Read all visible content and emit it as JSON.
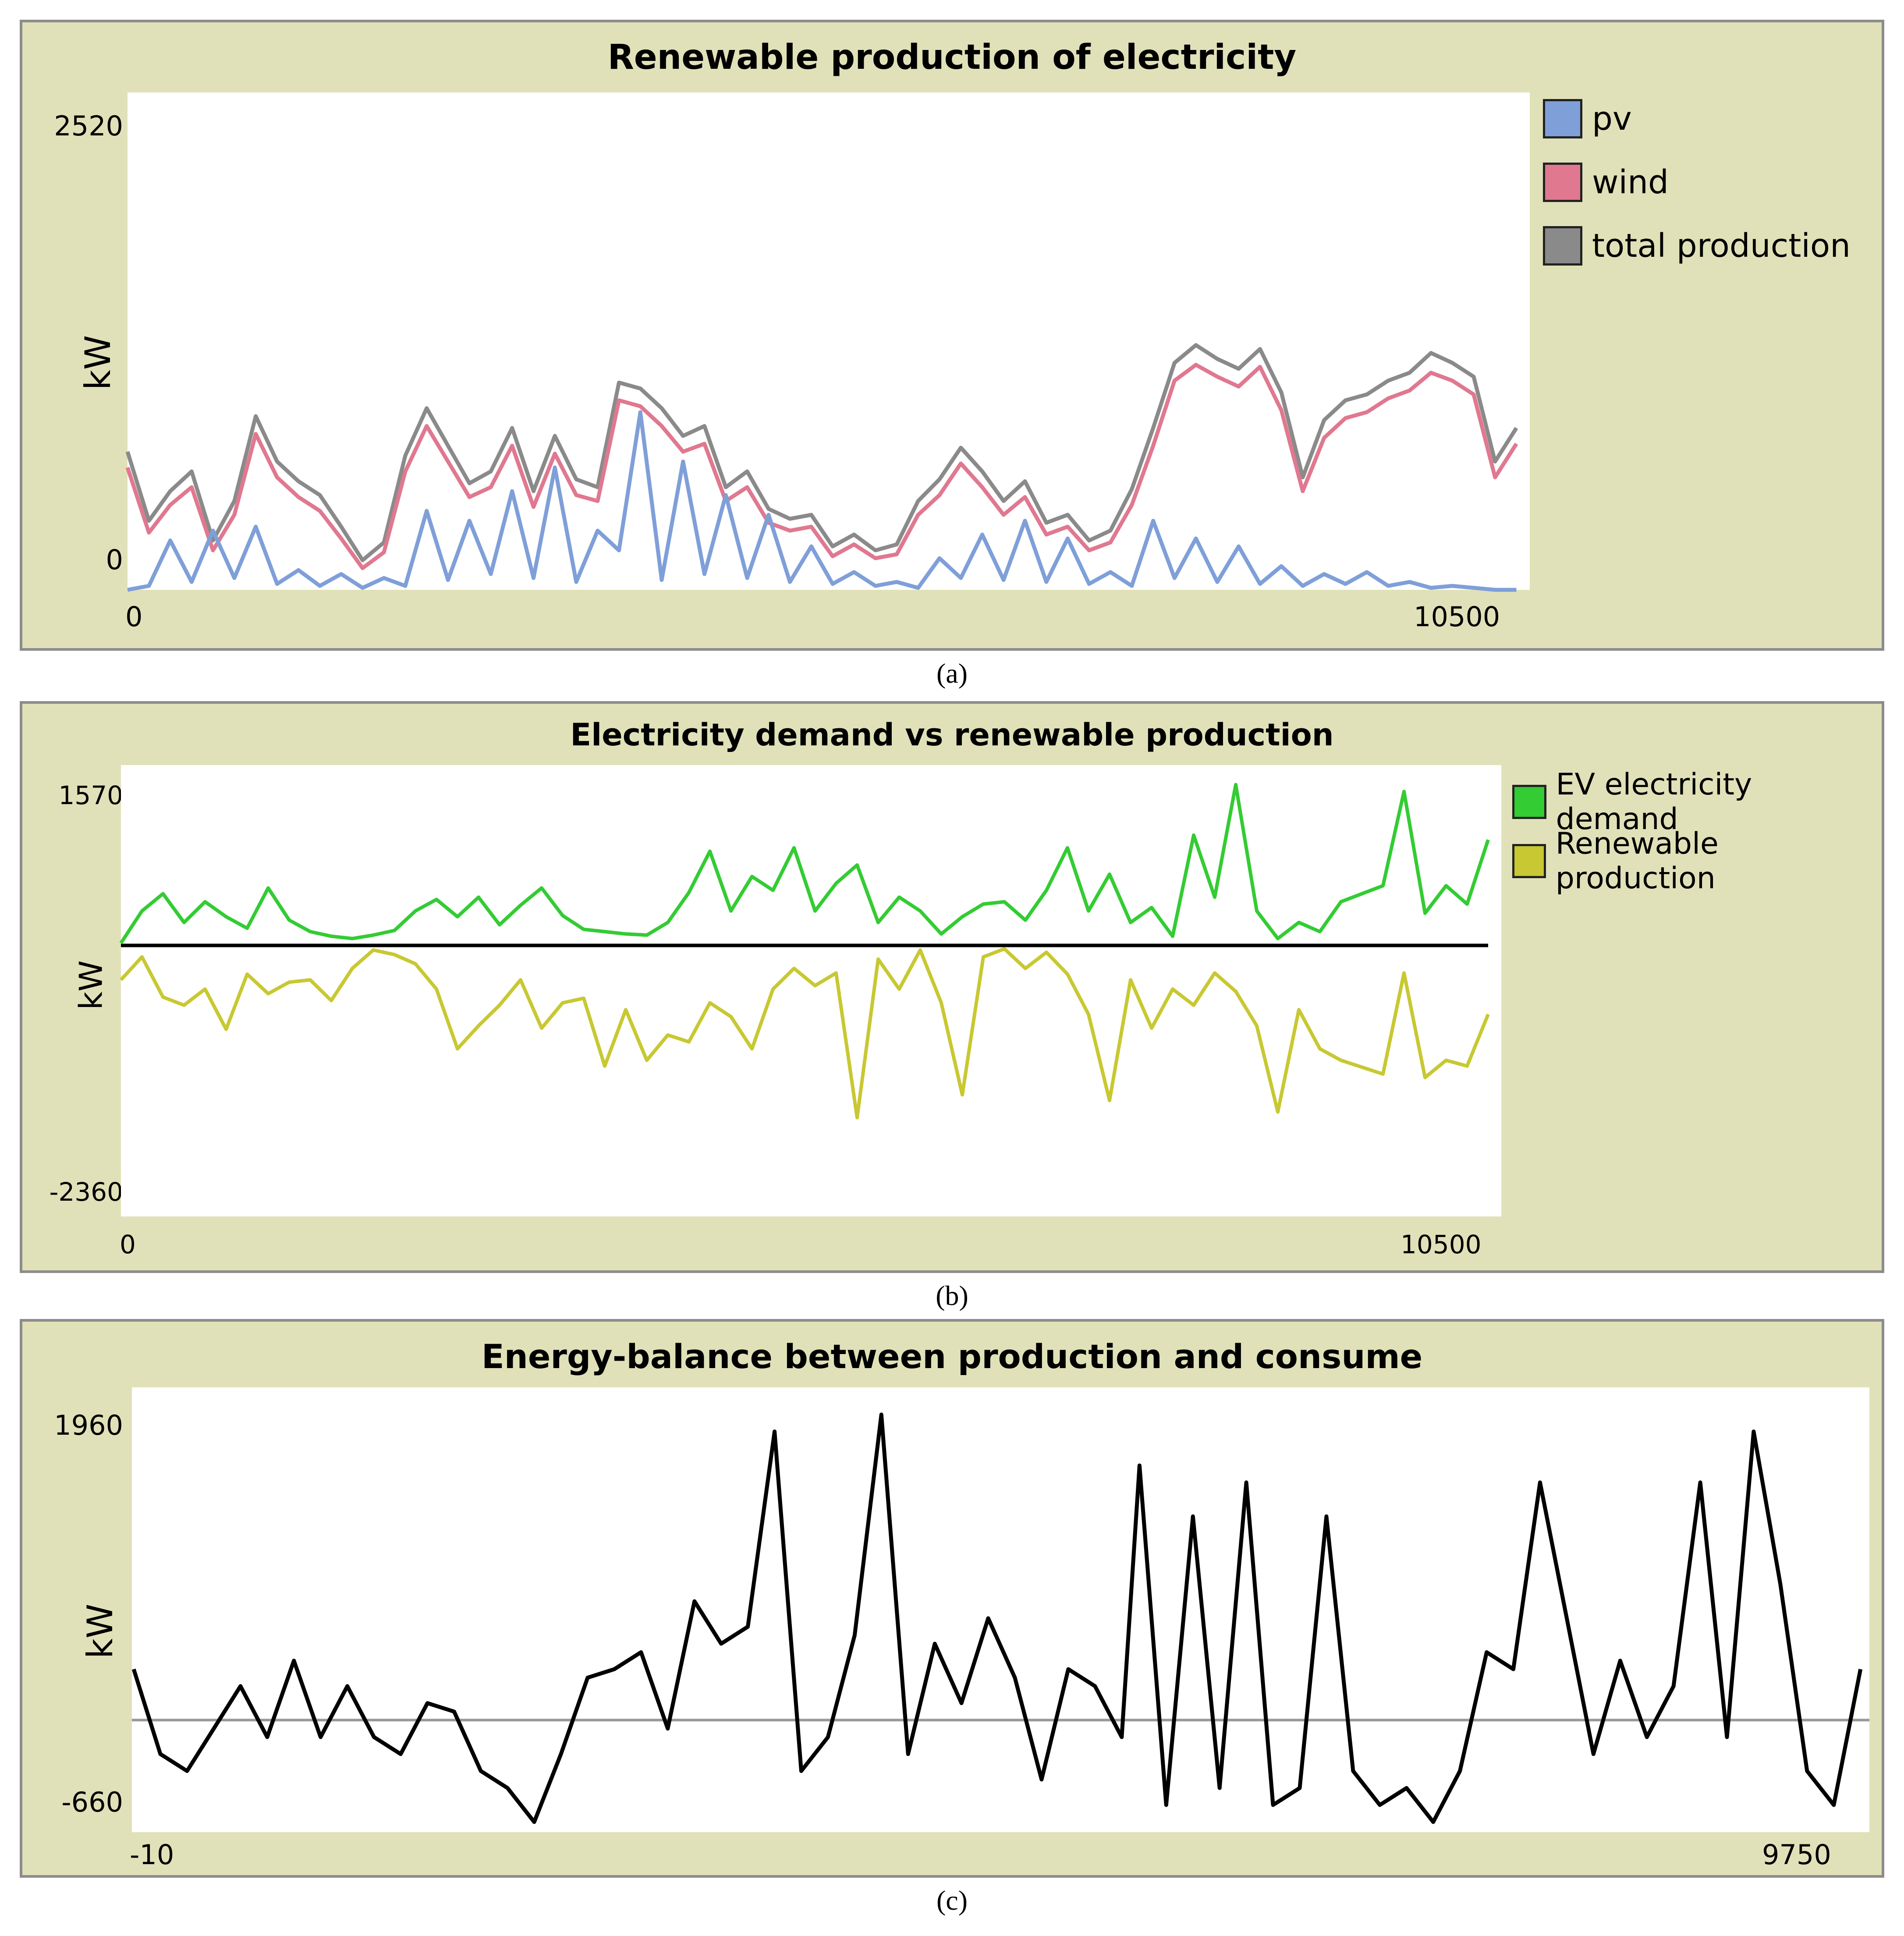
{
  "colors": {
    "panel_bg": "#e1e1b9",
    "pv": "#7f9fd8",
    "wind": "#e07890",
    "total": "#8a8a8a",
    "ev": "#33cc33",
    "renew": "#c8c832",
    "balance": "#000000",
    "zero_line": "#999999"
  },
  "chart_data": [
    {
      "type": "line",
      "title": "Renewable production of electricity",
      "ylabel": "kW",
      "xlabel": "",
      "xlim": [
        0,
        10500
      ],
      "ylim": [
        0,
        2520
      ],
      "x_tick_labels": [
        "0",
        "10500"
      ],
      "y_tick_labels": [
        "2520",
        "0"
      ],
      "legend": [
        {
          "name": "pv",
          "color": "#7f9fd8"
        },
        {
          "name": "wind",
          "color": "#e07890"
        },
        {
          "name": "total production",
          "color": "#8a8a8a"
        }
      ],
      "series": [
        {
          "name": "total production",
          "x": [
            0,
            160,
            320,
            480,
            640,
            800,
            960,
            1120,
            1280,
            1440,
            1600,
            1760,
            1920,
            2080,
            2240,
            2400,
            2560,
            2720,
            2880,
            3040,
            3200,
            3360,
            3520,
            3680,
            3840,
            4000,
            4160,
            4320,
            4480,
            4640,
            4800,
            4960,
            5120,
            5280,
            5440,
            5600,
            5760,
            5920,
            6080,
            6240,
            6400,
            6560,
            6720,
            6880,
            7040,
            7200,
            7360,
            7520,
            7680,
            7840,
            8000,
            8160,
            8320,
            8480,
            8640,
            8800,
            8960,
            9120,
            9280,
            9440,
            9600,
            9760,
            9920,
            10080,
            10240,
            10400
          ],
          "values": [
            700,
            350,
            500,
            600,
            250,
            450,
            880,
            650,
            550,
            480,
            320,
            150,
            240,
            680,
            920,
            730,
            540,
            600,
            820,
            500,
            780,
            560,
            520,
            1050,
            1020,
            920,
            780,
            830,
            520,
            600,
            410,
            360,
            380,
            220,
            280,
            200,
            230,
            450,
            560,
            720,
            600,
            450,
            550,
            340,
            380,
            250,
            300,
            510,
            820,
            1150,
            1240,
            1170,
            1120,
            1220,
            1000,
            570,
            860,
            960,
            990,
            1060,
            1100,
            1200,
            1150,
            1080,
            650,
            820
          ]
        },
        {
          "name": "wind",
          "x": [
            0,
            160,
            320,
            480,
            640,
            800,
            960,
            1120,
            1280,
            1440,
            1600,
            1760,
            1920,
            2080,
            2240,
            2400,
            2560,
            2720,
            2880,
            3040,
            3200,
            3360,
            3520,
            3680,
            3840,
            4000,
            4160,
            4320,
            4480,
            4640,
            4800,
            4960,
            5120,
            5280,
            5440,
            5600,
            5760,
            5920,
            6080,
            6240,
            6400,
            6560,
            6720,
            6880,
            7040,
            7200,
            7360,
            7520,
            7680,
            7840,
            8000,
            8160,
            8320,
            8480,
            8640,
            8800,
            8960,
            9120,
            9280,
            9440,
            9600,
            9760,
            9920,
            10080,
            10240,
            10400
          ],
          "values": [
            620,
            290,
            430,
            520,
            200,
            380,
            790,
            570,
            470,
            400,
            260,
            110,
            190,
            600,
            830,
            650,
            470,
            520,
            730,
            420,
            690,
            480,
            450,
            960,
            930,
            830,
            700,
            740,
            450,
            520,
            340,
            300,
            320,
            170,
            230,
            160,
            180,
            380,
            480,
            640,
            520,
            380,
            470,
            280,
            320,
            200,
            240,
            430,
            730,
            1060,
            1140,
            1080,
            1030,
            1130,
            910,
            500,
            770,
            870,
            900,
            970,
            1010,
            1100,
            1060,
            990,
            570,
            740
          ]
        },
        {
          "name": "pv",
          "x": [
            0,
            160,
            320,
            480,
            640,
            800,
            960,
            1120,
            1280,
            1440,
            1600,
            1760,
            1920,
            2080,
            2240,
            2400,
            2560,
            2720,
            2880,
            3040,
            3200,
            3360,
            3520,
            3680,
            3840,
            4000,
            4160,
            4320,
            4480,
            4640,
            4800,
            4960,
            5120,
            5280,
            5440,
            5600,
            5760,
            5920,
            6080,
            6240,
            6400,
            6560,
            6720,
            6880,
            7040,
            7200,
            7360,
            7520,
            7680,
            7840,
            8000,
            8160,
            8320,
            8480,
            8640,
            8800,
            8960,
            9120,
            9280,
            9440,
            9600,
            9760,
            9920,
            10080,
            10240,
            10400
          ],
          "values": [
            0,
            20,
            250,
            40,
            300,
            60,
            320,
            30,
            100,
            20,
            80,
            10,
            60,
            20,
            400,
            50,
            350,
            80,
            500,
            60,
            620,
            40,
            300,
            200,
            900,
            50,
            650,
            80,
            480,
            60,
            380,
            40,
            220,
            30,
            90,
            20,
            40,
            10,
            160,
            60,
            280,
            50,
            350,
            40,
            260,
            30,
            90,
            20,
            350,
            60,
            260,
            40,
            220,
            30,
            120,
            20,
            80,
            30,
            90,
            20,
            40,
            10,
            20,
            10,
            0,
            0
          ]
        }
      ]
    },
    {
      "type": "line",
      "title": "Electricity demand vs renewable production",
      "ylabel": "kW",
      "xlabel": "",
      "xlim": [
        0,
        10500
      ],
      "ylim": [
        -2360,
        1570
      ],
      "x_tick_labels": [
        "0",
        "10500"
      ],
      "y_tick_labels": [
        "1570",
        "-2360"
      ],
      "legend": [
        {
          "name": "EV electricity demand",
          "color": "#33cc33"
        },
        {
          "name": "Renewable production",
          "color": "#c8c832"
        }
      ],
      "series": [
        {
          "name": "EV electricity demand",
          "x": [
            0,
            160,
            320,
            480,
            640,
            800,
            960,
            1120,
            1280,
            1440,
            1600,
            1760,
            1920,
            2080,
            2240,
            2400,
            2560,
            2720,
            2880,
            3040,
            3200,
            3360,
            3520,
            3680,
            3840,
            4000,
            4160,
            4320,
            4480,
            4640,
            4800,
            4960,
            5120,
            5280,
            5440,
            5600,
            5760,
            5920,
            6080,
            6240,
            6400,
            6560,
            6720,
            6880,
            7040,
            7200,
            7360,
            7520,
            7680,
            7840,
            8000,
            8160,
            8320,
            8480,
            8640,
            8800,
            8960,
            9120,
            9280,
            9440,
            9600,
            9760,
            9920,
            10080,
            10240,
            10400
          ],
          "values": [
            20,
            300,
            450,
            200,
            380,
            250,
            150,
            500,
            220,
            120,
            80,
            60,
            90,
            130,
            300,
            400,
            250,
            420,
            180,
            350,
            500,
            260,
            140,
            120,
            100,
            90,
            200,
            460,
            820,
            300,
            600,
            480,
            850,
            300,
            540,
            700,
            200,
            420,
            300,
            100,
            250,
            360,
            380,
            220,
            480,
            850,
            300,
            620,
            200,
            330,
            80,
            960,
            420,
            1400,
            300,
            60,
            200,
            120,
            380,
            450,
            520,
            1340,
            280,
            520,
            360,
            920
          ]
        },
        {
          "name": "Renewable production",
          "x": [
            0,
            160,
            320,
            480,
            640,
            800,
            960,
            1120,
            1280,
            1440,
            1600,
            1760,
            1920,
            2080,
            2240,
            2400,
            2560,
            2720,
            2880,
            3040,
            3200,
            3360,
            3520,
            3680,
            3840,
            4000,
            4160,
            4320,
            4480,
            4640,
            4800,
            4960,
            5120,
            5280,
            5440,
            5600,
            5760,
            5920,
            6080,
            6240,
            6400,
            6560,
            6720,
            6880,
            7040,
            7200,
            7360,
            7520,
            7680,
            7840,
            8000,
            8160,
            8320,
            8480,
            8640,
            8800,
            8960,
            9120,
            9280,
            9440,
            9600,
            9760,
            9920,
            10080,
            10240,
            10400
          ],
          "values": [
            -300,
            -100,
            -450,
            -520,
            -380,
            -730,
            -250,
            -420,
            -320,
            -300,
            -480,
            -200,
            -40,
            -80,
            -160,
            -380,
            -900,
            -700,
            -520,
            -300,
            -720,
            -500,
            -460,
            -1050,
            -560,
            -1000,
            -780,
            -840,
            -500,
            -620,
            -900,
            -380,
            -200,
            -350,
            -240,
            -1500,
            -120,
            -380,
            -40,
            -500,
            -1300,
            -100,
            -30,
            -200,
            -60,
            -250,
            -600,
            -1350,
            -300,
            -720,
            -380,
            -520,
            -240,
            -400,
            -700,
            -1450,
            -560,
            -900,
            -1000,
            -1060,
            -1120,
            -240,
            -1150,
            -1000,
            -1050,
            -600
          ]
        }
      ]
    },
    {
      "type": "line",
      "title": "Energy-balance between production and consume",
      "ylabel": "kW",
      "xlabel": "",
      "xlim": [
        -10,
        9750
      ],
      "ylim": [
        -660,
        1960
      ],
      "x_tick_labels": [
        "-10",
        "9750"
      ],
      "y_tick_labels": [
        "1960",
        "-660"
      ],
      "series": [
        {
          "name": "balance",
          "x": [
            0,
            150,
            300,
            450,
            600,
            750,
            900,
            1050,
            1200,
            1350,
            1500,
            1650,
            1800,
            1950,
            2100,
            2250,
            2400,
            2550,
            2700,
            2850,
            3000,
            3150,
            3300,
            3450,
            3600,
            3750,
            3900,
            4050,
            4200,
            4350,
            4500,
            4650,
            4800,
            4950,
            5100,
            5250,
            5400,
            5550,
            5650,
            5800,
            5950,
            6100,
            6250,
            6400,
            6550,
            6700,
            6850,
            7000,
            7150,
            7300,
            7450,
            7600,
            7750,
            7900,
            8050,
            8200,
            8350,
            8500,
            8650,
            8800,
            8950,
            9100,
            9250,
            9400,
            9550,
            9700
          ],
          "values": [
            300,
            -200,
            -300,
            -50,
            200,
            -100,
            350,
            -100,
            200,
            -100,
            -200,
            100,
            50,
            -300,
            -400,
            -600,
            -200,
            250,
            300,
            400,
            -50,
            700,
            450,
            550,
            1700,
            -300,
            -100,
            500,
            1800,
            -200,
            450,
            100,
            600,
            250,
            -350,
            300,
            200,
            -100,
            1500,
            -500,
            1200,
            -400,
            1400,
            -500,
            -400,
            1200,
            -300,
            -500,
            -400,
            -600,
            -300,
            400,
            300,
            1400,
            600,
            -200,
            350,
            -100,
            200,
            1400,
            -100,
            1700,
            800,
            -300,
            -500,
            300
          ]
        },
        {
          "name": "zero",
          "x": [
            -10,
            9750
          ],
          "values": [
            0,
            0
          ]
        }
      ]
    }
  ],
  "captions": {
    "a": "(a)",
    "b": "(b)",
    "c": "(c)"
  }
}
